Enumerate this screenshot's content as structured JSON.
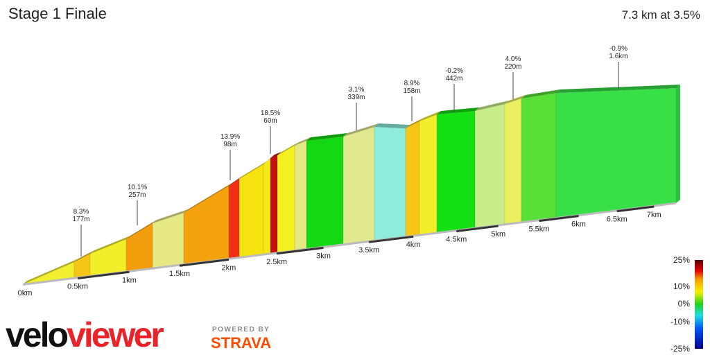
{
  "chart_data": {
    "type": "elevation-profile",
    "title": "Stage 1 Finale",
    "subtitle": "7.3 km at 3.5%",
    "annotations": [
      {
        "gradient": "8.3%",
        "length": "177m"
      },
      {
        "gradient": "10.1%",
        "length": "257m"
      },
      {
        "gradient": "13.9%",
        "length": "98m"
      },
      {
        "gradient": "18.5%",
        "length": "60m"
      },
      {
        "gradient": "3.1%",
        "length": "339m"
      },
      {
        "gradient": "8.9%",
        "length": "158m"
      },
      {
        "gradient": "-0.2%",
        "length": "442m"
      },
      {
        "gradient": "4.0%",
        "length": "220m"
      },
      {
        "gradient": "-0.9%",
        "length": "1.6km"
      }
    ],
    "xticks": [
      {
        "value": 0,
        "label": "0km"
      },
      {
        "value": 0.5,
        "label": "0.5km"
      },
      {
        "value": 1,
        "label": "1km"
      },
      {
        "value": 1.5,
        "label": "1.5km"
      },
      {
        "value": 2,
        "label": "2km"
      },
      {
        "value": 2.5,
        "label": "2.5km"
      },
      {
        "value": 3,
        "label": "3km"
      },
      {
        "value": 3.5,
        "label": "3.5km"
      },
      {
        "value": 4,
        "label": "4km"
      },
      {
        "value": 4.5,
        "label": "4.5km"
      },
      {
        "value": 5,
        "label": "5km"
      },
      {
        "value": 5.5,
        "label": "5.5km"
      },
      {
        "value": 6,
        "label": "6km"
      },
      {
        "value": 6.5,
        "label": "6.5km"
      },
      {
        "value": 7,
        "label": "7km"
      }
    ],
    "legend_ticks": [
      {
        "value": 25,
        "label": "25%"
      },
      {
        "value": 10,
        "label": "10%"
      },
      {
        "value": 0,
        "label": "0%"
      },
      {
        "value": -10,
        "label": "-10%"
      },
      {
        "value": -25,
        "label": "-25%"
      }
    ],
    "branding": {
      "logo_prefix": "velo",
      "logo_suffix": "viewer",
      "powered_by": "POWERED BY",
      "partner": "STRAVA"
    }
  }
}
